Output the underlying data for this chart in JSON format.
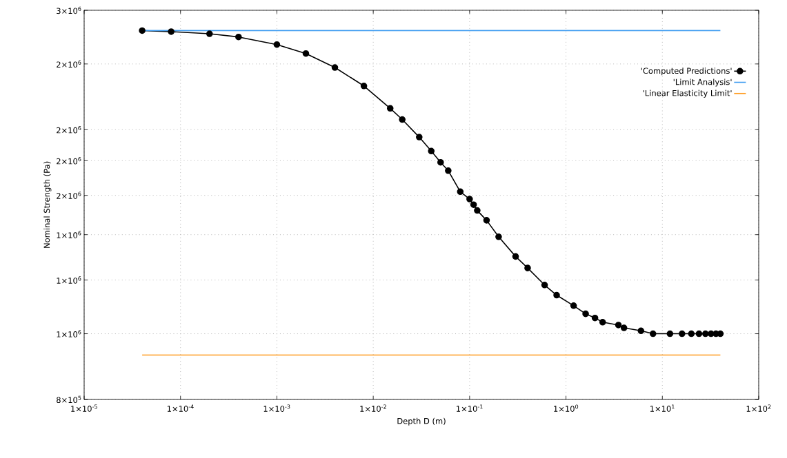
{
  "chart_data": {
    "type": "line",
    "xlabel": "Depth D (m)",
    "ylabel": "Nominal Strength (Pa)",
    "log": "xy",
    "grid": true,
    "legend": "top right",
    "xlim": [
      1e-05,
      100
    ],
    "ylim": [
      800000,
      3000000
    ],
    "xticks": [
      {
        "value": 1e-05,
        "label": "1×10$^{-5}$"
      },
      {
        "value": 0.0001,
        "label": "1×10$^{-4}$"
      },
      {
        "value": 0.001,
        "label": "1×10$^{-3}$"
      },
      {
        "value": 0.01,
        "label": "1×10$^{-2}$"
      },
      {
        "value": 0.1,
        "label": "1×10$^{-1}$"
      },
      {
        "value": 1,
        "label": "1×10$^{0}$"
      },
      {
        "value": 10,
        "label": "1×10$^{1}$"
      },
      {
        "value": 100,
        "label": "1×10$^{2}$"
      }
    ],
    "yticks": [
      {
        "value": 800000,
        "label": "8×10$^{5}$"
      },
      {
        "value": 1000000,
        "label": "1×10$^{6}$"
      },
      {
        "value": 1200000,
        "label": "1×10$^{6}$"
      },
      {
        "value": 1400000,
        "label": "1×10$^{6}$"
      },
      {
        "value": 1600000,
        "label": "2×10$^{6}$"
      },
      {
        "value": 1800000,
        "label": "2×10$^{6}$"
      },
      {
        "value": 2000000,
        "label": "2×10$^{6}$"
      },
      {
        "value": 2500000,
        "label": "2×10$^{6}$"
      },
      {
        "value": 3000000,
        "label": "3×10$^{6}$"
      }
    ],
    "series": [
      {
        "name": "'Computed Predictions'",
        "type": "line",
        "color": "#000000",
        "marker": "circle",
        "x": [
          4e-05,
          8e-05,
          0.0002,
          0.0004,
          0.001,
          0.002,
          0.004,
          0.008,
          0.015,
          0.02,
          0.03,
          0.04,
          0.05,
          0.06,
          0.08,
          0.1,
          0.11,
          0.12,
          0.15,
          0.2,
          0.3,
          0.4,
          0.6,
          0.8,
          1.2,
          1.6,
          2,
          2.4,
          3.5,
          4,
          6,
          8,
          12,
          16,
          20,
          24,
          28,
          32,
          36,
          40
        ],
        "values": [
          2800000,
          2790000,
          2770000,
          2740000,
          2670000,
          2590000,
          2470000,
          2320000,
          2150000,
          2070000,
          1950000,
          1860000,
          1790000,
          1740000,
          1620000,
          1580000,
          1550000,
          1520000,
          1470000,
          1390000,
          1300000,
          1250000,
          1180000,
          1140000,
          1100000,
          1070000,
          1055000,
          1040000,
          1030000,
          1020000,
          1010000,
          1000000,
          1000000,
          1000000,
          1000000,
          1000000,
          1000000,
          1000000,
          1000000,
          1000000
        ]
      },
      {
        "name": "'Limit Analysis'",
        "type": "line",
        "color": "#3d9bf0",
        "marker": "none",
        "x": [
          4e-05,
          40
        ],
        "values": [
          2800000,
          2800000
        ]
      },
      {
        "name": "'Linear Elasticity Limit'",
        "type": "line",
        "color": "#ff9a1c",
        "marker": "none",
        "x": [
          4e-05,
          40
        ],
        "values": [
          930000,
          930000
        ]
      }
    ]
  }
}
